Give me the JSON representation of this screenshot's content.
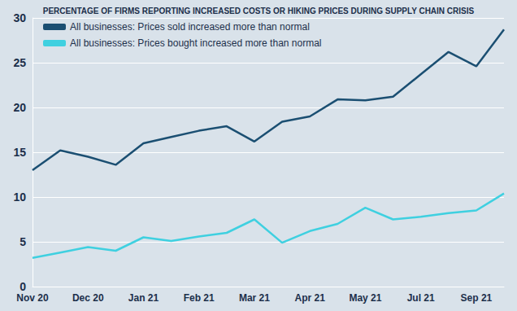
{
  "chart_data": {
    "type": "line",
    "title": "PERCENTAGE OF FIRMS REPORTING INCREASED COSTS OR HIKING PRICES DURING SUPPLY CHAIN CRISIS",
    "categories": [
      "Nov 20",
      null,
      "Dec 20",
      null,
      "Jan 21",
      null,
      "Feb 21",
      null,
      "Mar 21",
      null,
      "Apr 21",
      null,
      "May 21",
      null,
      "Jul 21",
      null,
      "Sep 21",
      null
    ],
    "series": [
      {
        "name": "All businesses: Prices sold increased more than normal",
        "color": "#1b4f72",
        "values": [
          13.0,
          15.2,
          14.5,
          13.6,
          16.0,
          16.7,
          17.4,
          17.9,
          16.2,
          18.4,
          19.0,
          20.9,
          20.8,
          21.2,
          23.7,
          26.2,
          24.6,
          28.7
        ]
      },
      {
        "name": "All businesses: Prices bought increased more than normal",
        "color": "#3fd0e0",
        "values": [
          3.2,
          3.8,
          4.4,
          4.0,
          5.5,
          5.1,
          5.6,
          6.0,
          7.5,
          4.9,
          6.2,
          7.0,
          8.8,
          7.5,
          7.8,
          8.2,
          8.5,
          10.4
        ]
      }
    ],
    "ylim": [
      0,
      30
    ],
    "yticks": [
      0,
      5,
      10,
      15,
      20,
      25,
      30
    ],
    "grid": true,
    "legend": "top-left"
  }
}
